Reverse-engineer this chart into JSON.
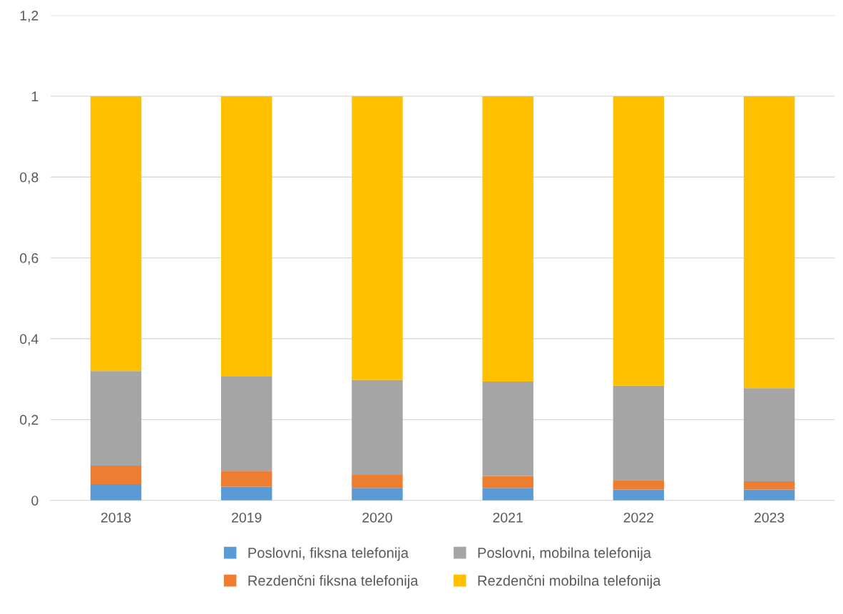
{
  "chart_data": {
    "type": "bar",
    "stacked": true,
    "categories": [
      "2018",
      "2019",
      "2020",
      "2021",
      "2022",
      "2023"
    ],
    "series": [
      {
        "name": "Poslovni, fiksna telefonija",
        "color": "#5b9bd5",
        "values": [
          0.04,
          0.034,
          0.031,
          0.031,
          0.027,
          0.027
        ]
      },
      {
        "name": "Rezdenčni fiksna telefonija",
        "color": "#ed7d31",
        "values": [
          0.046,
          0.039,
          0.032,
          0.029,
          0.023,
          0.02
        ]
      },
      {
        "name": "Poslovni, mobilna telefonija",
        "color": "#a5a5a5",
        "values": [
          0.234,
          0.235,
          0.235,
          0.234,
          0.234,
          0.231
        ]
      },
      {
        "name": "Rezdenčni mobilna telefonija",
        "color": "#ffc000",
        "values": [
          0.68,
          0.692,
          0.702,
          0.706,
          0.716,
          0.722
        ]
      }
    ],
    "ylim": [
      0,
      1.2
    ],
    "yticks": [
      0,
      {
        "value": 0.2,
        "label": "0,2"
      },
      {
        "value": 0.4,
        "label": "0,4"
      },
      {
        "value": 0.6,
        "label": "0,6"
      },
      {
        "value": 0.8,
        "label": "0,8"
      },
      1,
      {
        "value": 1.2,
        "label": "1,2"
      }
    ],
    "grid": "y",
    "legend": "bottom"
  }
}
